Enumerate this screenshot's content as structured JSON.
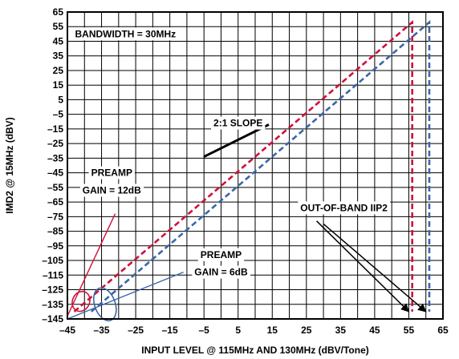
{
  "chart_data": {
    "type": "line",
    "title": "",
    "xlabel": "INPUT LEVEL @ 115MHz AND 130MHz (dBV/Tone)",
    "ylabel": "IMD2 @ 15MHz (dBV)",
    "xlim": [
      -45,
      65
    ],
    "ylim": [
      -145,
      65
    ],
    "x_ticks": [
      -45,
      -40,
      -35,
      -30,
      -25,
      -20,
      -15,
      -10,
      -5,
      0,
      5,
      10,
      15,
      20,
      25,
      30,
      35,
      40,
      45,
      50,
      55,
      60,
      65
    ],
    "x_tick_labels": [
      "–45",
      "",
      "–35",
      "",
      "–25",
      "",
      "–15",
      "",
      "–5",
      "",
      "5",
      "",
      "15",
      "",
      "25",
      "",
      "35",
      "",
      "45",
      "",
      "55",
      "",
      "65"
    ],
    "y_ticks": [
      65,
      55,
      45,
      35,
      25,
      15,
      5,
      -5,
      -15,
      -25,
      -35,
      -45,
      -55,
      -65,
      -75,
      -85,
      -95,
      -105,
      -115,
      -125,
      -135,
      -145
    ],
    "y_tick_labels": [
      "65",
      "55",
      "45",
      "35",
      "25",
      "15",
      "5",
      "–5",
      "–15",
      "–25",
      "–35",
      "–45",
      "–55",
      "–65",
      "–75",
      "–85",
      "–95",
      "–105",
      "–115",
      "–125",
      "–135",
      "–145"
    ],
    "grid": true,
    "series": [
      {
        "color": "#d0103a",
        "style": "dashed",
        "x": [
          -43,
          56,
          56
        ],
        "y": [
          -140,
          58,
          -140
        ]
      },
      {
        "color": "#3a66a8",
        "style": "dashed",
        "x": [
          -38,
          61,
          61
        ],
        "y": [
          -140,
          58,
          -140
        ]
      },
      {
        "color": "#d0103a",
        "style": "solid",
        "x": [
          -45,
          -31
        ],
        "y": [
          -143,
          -73
        ]
      },
      {
        "color": "#3a66a8",
        "style": "solid",
        "x": [
          -45,
          -11
        ],
        "y": [
          -145,
          -113
        ]
      }
    ],
    "annotations": [
      {
        "text": "BANDWIDTH = 30MHz",
        "x": -28,
        "y": 50
      },
      {
        "text": "2:1 SLOPE",
        "x": 5,
        "y": -11
      },
      {
        "text": "PREAMP",
        "x": -32,
        "y": -45
      },
      {
        "text": "GAIN = 12dB",
        "x": -32,
        "y": -57
      },
      {
        "text": "PREAMP",
        "x": 0,
        "y": -101
      },
      {
        "text": "GAIN = 6dB",
        "x": 0,
        "y": -113
      },
      {
        "text": "OUT-OF-BAND IIP2",
        "x": 36,
        "y": -69
      }
    ],
    "marker_lines": [
      {
        "color": "#000000",
        "x": [
          -5,
          14
        ],
        "y": [
          -34,
          -12
        ]
      },
      {
        "color": "#000000",
        "x": [
          28,
          55
        ],
        "y": [
          -78,
          -140
        ]
      },
      {
        "color": "#000000",
        "x": [
          30,
          60
        ],
        "y": [
          -80,
          -140
        ]
      }
    ],
    "ellipses": [
      {
        "color": "#d0103a",
        "cx": -41,
        "cy": -133,
        "rx": 2.5,
        "ry": 7,
        "rotate": 25
      },
      {
        "color": "#3a66a8",
        "cx": -34,
        "cy": -135,
        "rx": 5,
        "ry": 7,
        "rotate": 70
      }
    ]
  }
}
